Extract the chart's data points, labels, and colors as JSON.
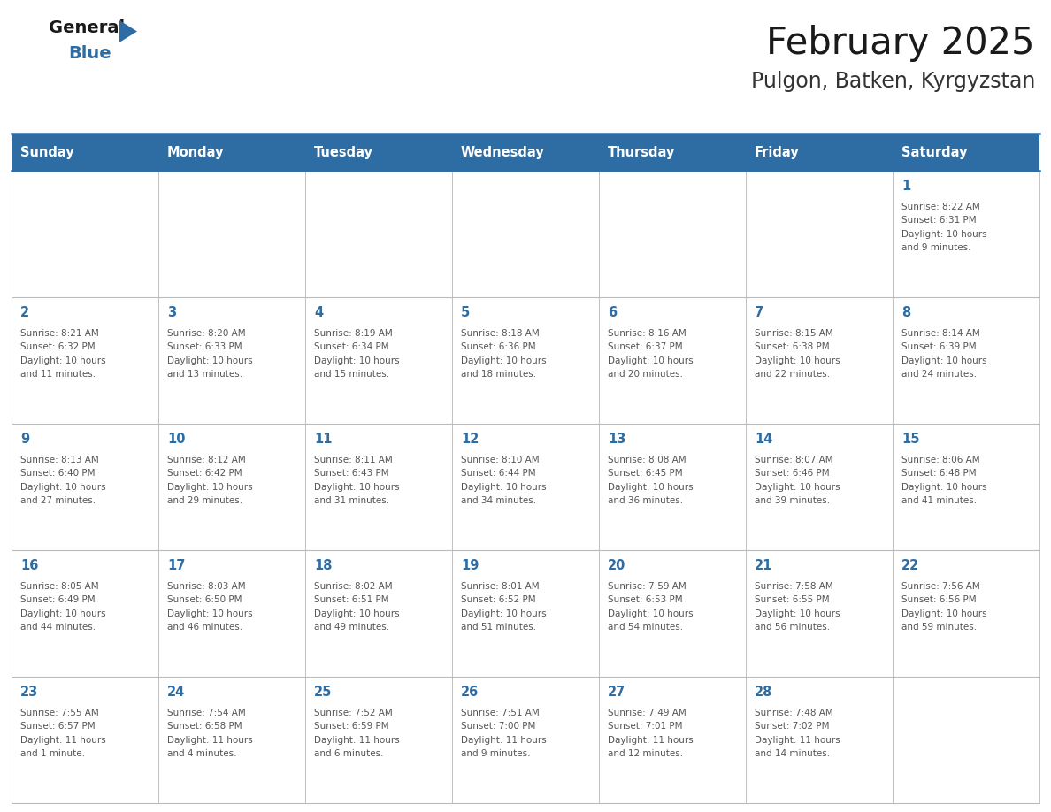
{
  "title": "February 2025",
  "subtitle": "Pulgon, Batken, Kyrgyzstan",
  "days_of_week": [
    "Sunday",
    "Monday",
    "Tuesday",
    "Wednesday",
    "Thursday",
    "Friday",
    "Saturday"
  ],
  "header_bg": "#2E6DA4",
  "header_text": "#FFFFFF",
  "border_color": "#2E6DA4",
  "row_border_color": "#4A90C4",
  "day_num_color": "#2E6DA4",
  "info_text_color": "#555555",
  "title_color": "#1a1a1a",
  "subtitle_color": "#333333",
  "blue_color": "#2E6DA4",
  "general_color": "#1a1a1a",
  "cell_line_color": "#BBBBBB",
  "fig_width": 11.88,
  "fig_height": 9.18,
  "calendar_data": [
    [
      null,
      null,
      null,
      null,
      null,
      null,
      {
        "day": 1,
        "lines": [
          "Sunrise: 8:22 AM",
          "Sunset: 6:31 PM",
          "Daylight: 10 hours",
          "and 9 minutes."
        ]
      }
    ],
    [
      {
        "day": 2,
        "lines": [
          "Sunrise: 8:21 AM",
          "Sunset: 6:32 PM",
          "Daylight: 10 hours",
          "and 11 minutes."
        ]
      },
      {
        "day": 3,
        "lines": [
          "Sunrise: 8:20 AM",
          "Sunset: 6:33 PM",
          "Daylight: 10 hours",
          "and 13 minutes."
        ]
      },
      {
        "day": 4,
        "lines": [
          "Sunrise: 8:19 AM",
          "Sunset: 6:34 PM",
          "Daylight: 10 hours",
          "and 15 minutes."
        ]
      },
      {
        "day": 5,
        "lines": [
          "Sunrise: 8:18 AM",
          "Sunset: 6:36 PM",
          "Daylight: 10 hours",
          "and 18 minutes."
        ]
      },
      {
        "day": 6,
        "lines": [
          "Sunrise: 8:16 AM",
          "Sunset: 6:37 PM",
          "Daylight: 10 hours",
          "and 20 minutes."
        ]
      },
      {
        "day": 7,
        "lines": [
          "Sunrise: 8:15 AM",
          "Sunset: 6:38 PM",
          "Daylight: 10 hours",
          "and 22 minutes."
        ]
      },
      {
        "day": 8,
        "lines": [
          "Sunrise: 8:14 AM",
          "Sunset: 6:39 PM",
          "Daylight: 10 hours",
          "and 24 minutes."
        ]
      }
    ],
    [
      {
        "day": 9,
        "lines": [
          "Sunrise: 8:13 AM",
          "Sunset: 6:40 PM",
          "Daylight: 10 hours",
          "and 27 minutes."
        ]
      },
      {
        "day": 10,
        "lines": [
          "Sunrise: 8:12 AM",
          "Sunset: 6:42 PM",
          "Daylight: 10 hours",
          "and 29 minutes."
        ]
      },
      {
        "day": 11,
        "lines": [
          "Sunrise: 8:11 AM",
          "Sunset: 6:43 PM",
          "Daylight: 10 hours",
          "and 31 minutes."
        ]
      },
      {
        "day": 12,
        "lines": [
          "Sunrise: 8:10 AM",
          "Sunset: 6:44 PM",
          "Daylight: 10 hours",
          "and 34 minutes."
        ]
      },
      {
        "day": 13,
        "lines": [
          "Sunrise: 8:08 AM",
          "Sunset: 6:45 PM",
          "Daylight: 10 hours",
          "and 36 minutes."
        ]
      },
      {
        "day": 14,
        "lines": [
          "Sunrise: 8:07 AM",
          "Sunset: 6:46 PM",
          "Daylight: 10 hours",
          "and 39 minutes."
        ]
      },
      {
        "day": 15,
        "lines": [
          "Sunrise: 8:06 AM",
          "Sunset: 6:48 PM",
          "Daylight: 10 hours",
          "and 41 minutes."
        ]
      }
    ],
    [
      {
        "day": 16,
        "lines": [
          "Sunrise: 8:05 AM",
          "Sunset: 6:49 PM",
          "Daylight: 10 hours",
          "and 44 minutes."
        ]
      },
      {
        "day": 17,
        "lines": [
          "Sunrise: 8:03 AM",
          "Sunset: 6:50 PM",
          "Daylight: 10 hours",
          "and 46 minutes."
        ]
      },
      {
        "day": 18,
        "lines": [
          "Sunrise: 8:02 AM",
          "Sunset: 6:51 PM",
          "Daylight: 10 hours",
          "and 49 minutes."
        ]
      },
      {
        "day": 19,
        "lines": [
          "Sunrise: 8:01 AM",
          "Sunset: 6:52 PM",
          "Daylight: 10 hours",
          "and 51 minutes."
        ]
      },
      {
        "day": 20,
        "lines": [
          "Sunrise: 7:59 AM",
          "Sunset: 6:53 PM",
          "Daylight: 10 hours",
          "and 54 minutes."
        ]
      },
      {
        "day": 21,
        "lines": [
          "Sunrise: 7:58 AM",
          "Sunset: 6:55 PM",
          "Daylight: 10 hours",
          "and 56 minutes."
        ]
      },
      {
        "day": 22,
        "lines": [
          "Sunrise: 7:56 AM",
          "Sunset: 6:56 PM",
          "Daylight: 10 hours",
          "and 59 minutes."
        ]
      }
    ],
    [
      {
        "day": 23,
        "lines": [
          "Sunrise: 7:55 AM",
          "Sunset: 6:57 PM",
          "Daylight: 11 hours",
          "and 1 minute."
        ]
      },
      {
        "day": 24,
        "lines": [
          "Sunrise: 7:54 AM",
          "Sunset: 6:58 PM",
          "Daylight: 11 hours",
          "and 4 minutes."
        ]
      },
      {
        "day": 25,
        "lines": [
          "Sunrise: 7:52 AM",
          "Sunset: 6:59 PM",
          "Daylight: 11 hours",
          "and 6 minutes."
        ]
      },
      {
        "day": 26,
        "lines": [
          "Sunrise: 7:51 AM",
          "Sunset: 7:00 PM",
          "Daylight: 11 hours",
          "and 9 minutes."
        ]
      },
      {
        "day": 27,
        "lines": [
          "Sunrise: 7:49 AM",
          "Sunset: 7:01 PM",
          "Daylight: 11 hours",
          "and 12 minutes."
        ]
      },
      {
        "day": 28,
        "lines": [
          "Sunrise: 7:48 AM",
          "Sunset: 7:02 PM",
          "Daylight: 11 hours",
          "and 14 minutes."
        ]
      },
      null
    ]
  ]
}
